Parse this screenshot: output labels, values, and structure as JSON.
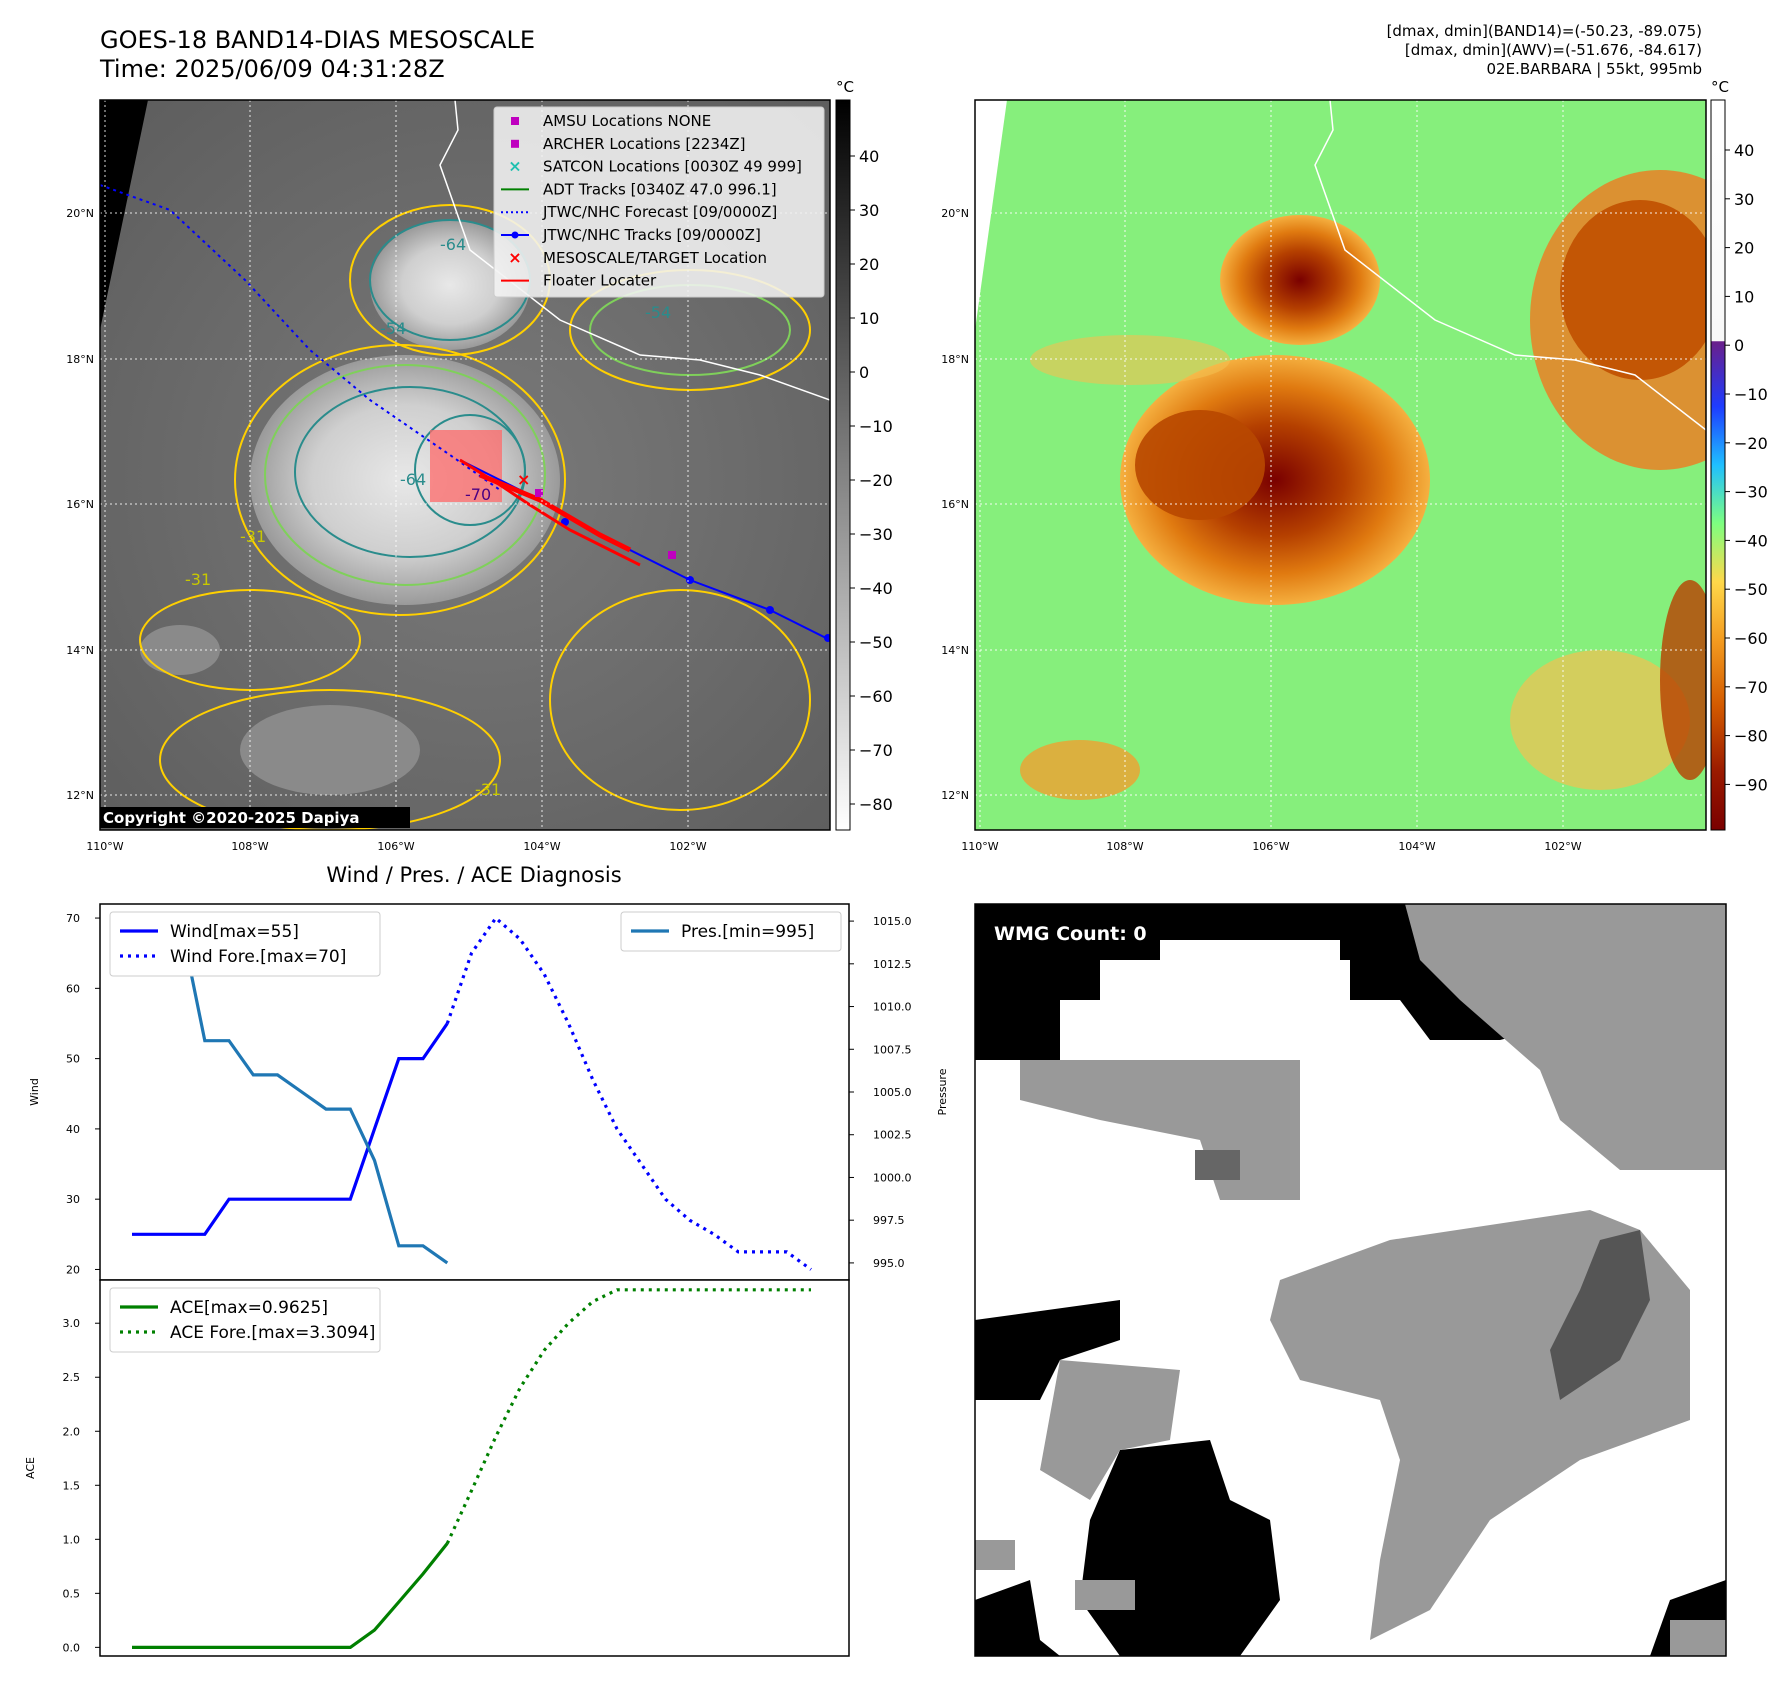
{
  "header": {
    "title_line1": "GOES-18 BAND14-DIAS MESOSCALE",
    "title_line2": "Time: 2025/06/09 04:31:28Z",
    "info_line1": "[dmax, dmin](BAND14)=(-50.23, -89.075)",
    "info_line2": "[dmax, dmin](AWV)=(-51.676, -84.617)",
    "info_line3": "02E.BARBARA | 55kt, 995mb"
  },
  "map_panels": {
    "lon_labels": [
      "110°W",
      "108°W",
      "106°W",
      "104°W",
      "102°W"
    ],
    "lat_labels": [
      "20°N",
      "18°N",
      "16°N",
      "14°N",
      "12°N"
    ],
    "copyright": "Copyright ©2020-2025 Dapiya",
    "legend": [
      {
        "label": "AMSU Locations NONE",
        "color": "#bf00bf",
        "marker": "square"
      },
      {
        "label": "ARCHER Locations [2234Z]",
        "color": "#bf00bf",
        "marker": "square"
      },
      {
        "label": "SATCON Locations [0030Z 49 999]",
        "color": "#20c0b0",
        "marker": "x"
      },
      {
        "label": "ADT Tracks [0340Z 47.0 996.1]",
        "color": "#008000",
        "marker": "line"
      },
      {
        "label": "JTWC/NHC Forecast [09/0000Z]",
        "color": "#0000ff",
        "marker": "dotted"
      },
      {
        "label": "JTWC/NHC Tracks [09/0000Z]",
        "color": "#0000ff",
        "marker": "line-dot"
      },
      {
        "label": "MESOSCALE/TARGET Location",
        "color": "#ff0000",
        "marker": "x"
      },
      {
        "label": "Floater Locater",
        "color": "#ff0000",
        "marker": "line"
      }
    ],
    "contour_labels": [
      "-64",
      "-54",
      "-31",
      "-54",
      "-64",
      "-70",
      "-31",
      "-31"
    ],
    "colorbar_left": {
      "unit": "°C",
      "ticks": [
        "40",
        "30",
        "20",
        "10",
        "0",
        "−10",
        "−20",
        "−30",
        "−40",
        "−50",
        "−60",
        "−70",
        "−80"
      ]
    },
    "colorbar_right": {
      "unit": "°C",
      "ticks": [
        "40",
        "30",
        "20",
        "10",
        "0",
        "−10",
        "−20",
        "−30",
        "−40",
        "−50",
        "−60",
        "−70",
        "−80",
        "−90"
      ]
    }
  },
  "chart_data": [
    {
      "type": "line",
      "title": "Wind / Pres. / ACE Diagnosis",
      "ylabel": "Wind",
      "ylabel_right": "Pressure",
      "ylim": [
        18.5,
        72
      ],
      "ylim_right": [
        994.0,
        1016.0
      ],
      "yticks": [
        "70",
        "60",
        "50",
        "40",
        "30",
        "20"
      ],
      "yticks_right": [
        "1015.0",
        "1012.5",
        "1010.0",
        "1007.5",
        "1005.0",
        "1002.5",
        "1000.0",
        "997.5",
        "995.0"
      ],
      "x_index_range": [
        0,
        28
      ],
      "series": [
        {
          "name": "Wind[max=55]",
          "color": "#0000ff",
          "style": "solid",
          "axis": "left",
          "x": [
            0,
            1,
            2,
            3,
            4,
            5,
            6,
            7,
            8,
            9,
            10,
            11,
            12,
            13
          ],
          "values": [
            25,
            25,
            25,
            25,
            30,
            30,
            30,
            30,
            30,
            30,
            40,
            50,
            50,
            55
          ]
        },
        {
          "name": "Wind Fore.[max=70]",
          "color": "#0000ff",
          "style": "dotted",
          "axis": "left",
          "x": [
            13,
            14,
            15,
            16,
            17,
            18,
            19,
            20,
            21,
            22,
            23,
            24,
            25,
            26,
            27,
            28
          ],
          "values": [
            55,
            65,
            70,
            67,
            62,
            55,
            47,
            40,
            35,
            30,
            27,
            25,
            22.5,
            22.5,
            22.5,
            20
          ]
        },
        {
          "name": "Pres.[min=995]",
          "color": "#1f77b4",
          "style": "solid",
          "axis": "right",
          "x": [
            0,
            1,
            2,
            3,
            4,
            5,
            6,
            7,
            8,
            9,
            10,
            11,
            12,
            13
          ],
          "values": [
            1015,
            1015,
            1015,
            1008,
            1008,
            1006,
            1006,
            1005,
            1004,
            1004,
            1001,
            996,
            996,
            995
          ]
        }
      ]
    },
    {
      "type": "line",
      "ylabel": "ACE",
      "ylim": [
        -0.08,
        3.4
      ],
      "yticks": [
        "3.0",
        "2.5",
        "2.0",
        "1.5",
        "1.0",
        "0.5",
        "0.0"
      ],
      "x_index_range": [
        0,
        28
      ],
      "series": [
        {
          "name": "ACE[max=0.9625]",
          "color": "#008000",
          "style": "solid",
          "x": [
            0,
            1,
            2,
            3,
            4,
            5,
            6,
            7,
            8,
            9,
            10,
            11,
            12,
            13
          ],
          "values": [
            0,
            0,
            0,
            0,
            0,
            0,
            0,
            0,
            0,
            0,
            0.16,
            0.42,
            0.68,
            0.9625
          ]
        },
        {
          "name": "ACE Fore.[max=3.3094]",
          "color": "#008000",
          "style": "dotted",
          "x": [
            13,
            14,
            15,
            16,
            17,
            18,
            19,
            20,
            21,
            22,
            23,
            24,
            25,
            26,
            27,
            28
          ],
          "values": [
            0.9625,
            1.45,
            1.95,
            2.4,
            2.75,
            3.0,
            3.2,
            3.3094,
            3.3094,
            3.3094,
            3.3094,
            3.3094,
            3.3094,
            3.3094,
            3.3094,
            3.3094
          ]
        }
      ]
    }
  ],
  "wmg_panel": {
    "label": "WMG Count: 0"
  }
}
